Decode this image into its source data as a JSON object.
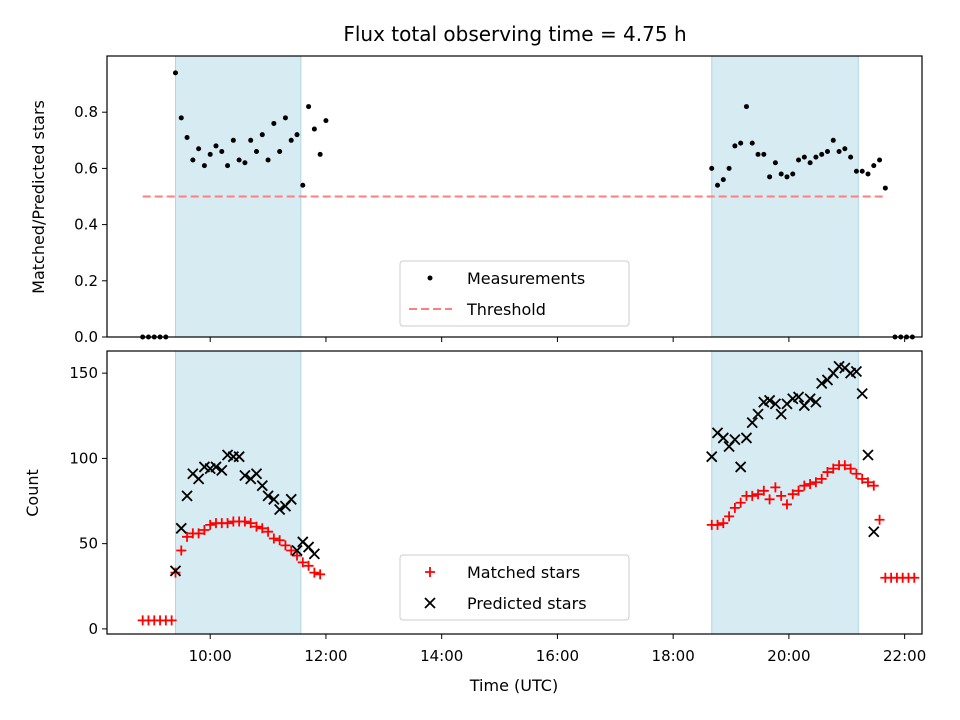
{
  "title": "Flux total observing time = 4.75 h",
  "colors": {
    "band": "#add8e6",
    "measurement": "#000000",
    "threshold": "#ff7f7f",
    "matched": "#ff0000",
    "predicted": "#000000"
  },
  "chart_data": [
    {
      "type": "scatter",
      "ylabel": "Matched/Predicted stars",
      "ylim": [
        0,
        1.0
      ],
      "yticks": [
        "0.0",
        "0.2",
        "0.4",
        "0.6",
        "0.8"
      ],
      "xlim": [
        "08:13",
        "22:18"
      ],
      "shaded_intervals": [
        [
          "09:24",
          "11:34"
        ],
        [
          "18:40",
          "21:12"
        ]
      ],
      "threshold": {
        "value": 0.5,
        "x_start": "08:50",
        "x_end": "21:40"
      },
      "legend": {
        "position": "lower center",
        "entries": [
          "Measurements",
          "Threshold"
        ]
      },
      "series": [
        {
          "name": "Measurements",
          "points": [
            [
              "08:50",
              0.0
            ],
            [
              "08:56",
              0.0
            ],
            [
              "09:02",
              0.0
            ],
            [
              "09:08",
              0.0
            ],
            [
              "09:14",
              0.0
            ],
            [
              "09:24",
              0.94
            ],
            [
              "09:30",
              0.78
            ],
            [
              "09:36",
              0.71
            ],
            [
              "09:42",
              0.63
            ],
            [
              "09:48",
              0.67
            ],
            [
              "09:54",
              0.61
            ],
            [
              "10:00",
              0.65
            ],
            [
              "10:06",
              0.68
            ],
            [
              "10:12",
              0.66
            ],
            [
              "10:18",
              0.61
            ],
            [
              "10:24",
              0.7
            ],
            [
              "10:30",
              0.63
            ],
            [
              "10:36",
              0.62
            ],
            [
              "10:42",
              0.7
            ],
            [
              "10:48",
              0.66
            ],
            [
              "10:54",
              0.72
            ],
            [
              "11:00",
              0.63
            ],
            [
              "11:06",
              0.76
            ],
            [
              "11:12",
              0.66
            ],
            [
              "11:18",
              0.78
            ],
            [
              "11:24",
              0.7
            ],
            [
              "11:30",
              0.72
            ],
            [
              "11:36",
              0.54
            ],
            [
              "11:42",
              0.82
            ],
            [
              "11:48",
              0.74
            ],
            [
              "11:54",
              0.65
            ],
            [
              "12:00",
              0.77
            ],
            [
              "18:40",
              0.6
            ],
            [
              "18:46",
              0.54
            ],
            [
              "18:52",
              0.56
            ],
            [
              "18:58",
              0.6
            ],
            [
              "19:04",
              0.68
            ],
            [
              "19:10",
              0.69
            ],
            [
              "19:16",
              0.82
            ],
            [
              "19:22",
              0.69
            ],
            [
              "19:28",
              0.65
            ],
            [
              "19:34",
              0.65
            ],
            [
              "19:40",
              0.57
            ],
            [
              "19:46",
              0.62
            ],
            [
              "19:52",
              0.58
            ],
            [
              "19:58",
              0.57
            ],
            [
              "20:04",
              0.58
            ],
            [
              "20:10",
              0.63
            ],
            [
              "20:16",
              0.64
            ],
            [
              "20:22",
              0.62
            ],
            [
              "20:28",
              0.64
            ],
            [
              "20:34",
              0.65
            ],
            [
              "20:40",
              0.66
            ],
            [
              "20:46",
              0.7
            ],
            [
              "20:52",
              0.66
            ],
            [
              "20:58",
              0.67
            ],
            [
              "21:04",
              0.64
            ],
            [
              "21:10",
              0.59
            ],
            [
              "21:16",
              0.59
            ],
            [
              "21:22",
              0.58
            ],
            [
              "21:28",
              0.61
            ],
            [
              "21:34",
              0.63
            ],
            [
              "21:40",
              0.53
            ],
            [
              "21:50",
              0.0
            ],
            [
              "21:56",
              0.0
            ],
            [
              "22:02",
              0.0
            ],
            [
              "22:08",
              0.0
            ]
          ]
        }
      ]
    },
    {
      "type": "scatter",
      "xlabel": "Time (UTC)",
      "ylabel": "Count",
      "ylim": [
        -3,
        163
      ],
      "yticks": [
        "0",
        "50",
        "100",
        "150"
      ],
      "xticks": [
        "10:00",
        "12:00",
        "14:00",
        "16:00",
        "18:00",
        "20:00",
        "22:00"
      ],
      "xlim": [
        "08:13",
        "22:18"
      ],
      "shaded_intervals": [
        [
          "09:24",
          "11:34"
        ],
        [
          "18:40",
          "21:12"
        ]
      ],
      "legend": {
        "position": "lower center",
        "entries": [
          "Matched stars",
          "Predicted stars"
        ]
      },
      "series": [
        {
          "name": "Matched stars",
          "marker": "+",
          "points": [
            [
              "08:50",
              5
            ],
            [
              "08:56",
              5
            ],
            [
              "09:02",
              5
            ],
            [
              "09:08",
              5
            ],
            [
              "09:14",
              5
            ],
            [
              "09:20",
              5
            ],
            [
              "09:24",
              33
            ],
            [
              "09:30",
              46
            ],
            [
              "09:36",
              54
            ],
            [
              "09:42",
              56
            ],
            [
              "09:48",
              56
            ],
            [
              "09:54",
              58
            ],
            [
              "10:00",
              61
            ],
            [
              "10:06",
              62
            ],
            [
              "10:12",
              62
            ],
            [
              "10:18",
              62
            ],
            [
              "10:24",
              63
            ],
            [
              "10:30",
              63
            ],
            [
              "10:36",
              63
            ],
            [
              "10:42",
              62
            ],
            [
              "10:48",
              60
            ],
            [
              "10:54",
              59
            ],
            [
              "11:00",
              57
            ],
            [
              "11:06",
              53
            ],
            [
              "11:12",
              52
            ],
            [
              "11:18",
              49
            ],
            [
              "11:24",
              46
            ],
            [
              "11:30",
              43
            ],
            [
              "11:36",
              39
            ],
            [
              "11:42",
              37
            ],
            [
              "11:48",
              33
            ],
            [
              "11:54",
              32
            ],
            [
              "18:40",
              61
            ],
            [
              "18:46",
              61
            ],
            [
              "18:52",
              62
            ],
            [
              "18:58",
              66
            ],
            [
              "19:04",
              71
            ],
            [
              "19:10",
              74
            ],
            [
              "19:16",
              78
            ],
            [
              "19:22",
              78
            ],
            [
              "19:28",
              79
            ],
            [
              "19:34",
              81
            ],
            [
              "19:40",
              76
            ],
            [
              "19:46",
              83
            ],
            [
              "19:52",
              78
            ],
            [
              "19:58",
              73
            ],
            [
              "20:04",
              79
            ],
            [
              "20:10",
              81
            ],
            [
              "20:16",
              84
            ],
            [
              "20:22",
              85
            ],
            [
              "20:28",
              86
            ],
            [
              "20:34",
              88
            ],
            [
              "20:40",
              92
            ],
            [
              "20:46",
              94
            ],
            [
              "20:52",
              96
            ],
            [
              "20:58",
              96
            ],
            [
              "21:04",
              94
            ],
            [
              "21:10",
              91
            ],
            [
              "21:16",
              88
            ],
            [
              "21:22",
              86
            ],
            [
              "21:28",
              84
            ],
            [
              "21:34",
              64
            ],
            [
              "21:40",
              30
            ],
            [
              "21:46",
              30
            ],
            [
              "21:52",
              30
            ],
            [
              "21:58",
              30
            ],
            [
              "22:04",
              30
            ],
            [
              "22:10",
              30
            ]
          ]
        },
        {
          "name": "Predicted stars",
          "marker": "x",
          "points": [
            [
              "09:24",
              34
            ],
            [
              "09:30",
              59
            ],
            [
              "09:36",
              78
            ],
            [
              "09:42",
              91
            ],
            [
              "09:48",
              88
            ],
            [
              "09:54",
              95
            ],
            [
              "10:00",
              94
            ],
            [
              "10:06",
              95
            ],
            [
              "10:12",
              93
            ],
            [
              "10:18",
              102
            ],
            [
              "10:24",
              101
            ],
            [
              "10:30",
              101
            ],
            [
              "10:36",
              90
            ],
            [
              "10:42",
              88
            ],
            [
              "10:48",
              91
            ],
            [
              "10:54",
              84
            ],
            [
              "11:00",
              78
            ],
            [
              "11:06",
              76
            ],
            [
              "11:12",
              70
            ],
            [
              "11:18",
              72
            ],
            [
              "11:24",
              76
            ],
            [
              "11:30",
              46
            ],
            [
              "11:36",
              51
            ],
            [
              "11:42",
              48
            ],
            [
              "11:48",
              44
            ],
            [
              "18:40",
              101
            ],
            [
              "18:46",
              115
            ],
            [
              "18:52",
              112
            ],
            [
              "18:58",
              107
            ],
            [
              "19:04",
              111
            ],
            [
              "19:10",
              95
            ],
            [
              "19:16",
              112
            ],
            [
              "19:22",
              121
            ],
            [
              "19:28",
              126
            ],
            [
              "19:34",
              133
            ],
            [
              "19:40",
              134
            ],
            [
              "19:46",
              132
            ],
            [
              "19:52",
              126
            ],
            [
              "19:58",
              132
            ],
            [
              "20:04",
              135
            ],
            [
              "20:10",
              136
            ],
            [
              "20:16",
              131
            ],
            [
              "20:22",
              135
            ],
            [
              "20:28",
              133
            ],
            [
              "20:34",
              144
            ],
            [
              "20:40",
              146
            ],
            [
              "20:46",
              150
            ],
            [
              "20:52",
              154
            ],
            [
              "20:58",
              153
            ],
            [
              "21:04",
              150
            ],
            [
              "21:10",
              151
            ],
            [
              "21:16",
              138
            ],
            [
              "21:22",
              102
            ],
            [
              "21:28",
              57
            ]
          ]
        }
      ]
    }
  ]
}
